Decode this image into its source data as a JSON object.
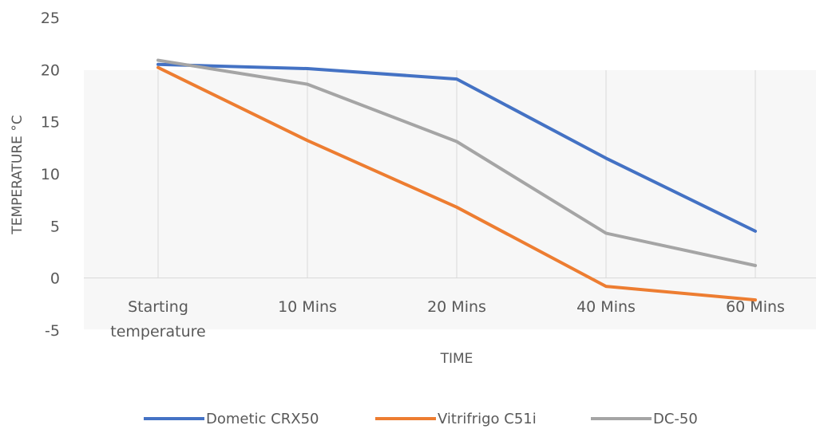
{
  "chart_data": {
    "type": "line",
    "title": "",
    "xlabel": "TIME",
    "ylabel": "TEMPERATURE °C",
    "categories": [
      [
        "Starting",
        "temperature"
      ],
      [
        "10 Mins"
      ],
      [
        "20 Mins"
      ],
      [
        "40 Mins"
      ],
      [
        "60 Mins"
      ]
    ],
    "ylim": [
      -5,
      25
    ],
    "yticks": [
      "25",
      "20",
      "15",
      "10",
      "5",
      "0",
      "-5"
    ],
    "grid": "vertical",
    "legend_position": "bottom",
    "series": [
      {
        "name": "Dometic CRX50",
        "color": "#4472C4",
        "values": [
          20.5,
          20.1,
          19.1,
          11.5,
          4.5
        ]
      },
      {
        "name": "Vitrifrigo C51i",
        "color": "#ED7D31",
        "values": [
          20.2,
          13.2,
          6.8,
          -0.8,
          -2.1
        ]
      },
      {
        "name": "DC-50",
        "color": "#A5A5A5",
        "values": [
          20.9,
          18.6,
          13.1,
          4.3,
          1.2
        ]
      }
    ]
  }
}
